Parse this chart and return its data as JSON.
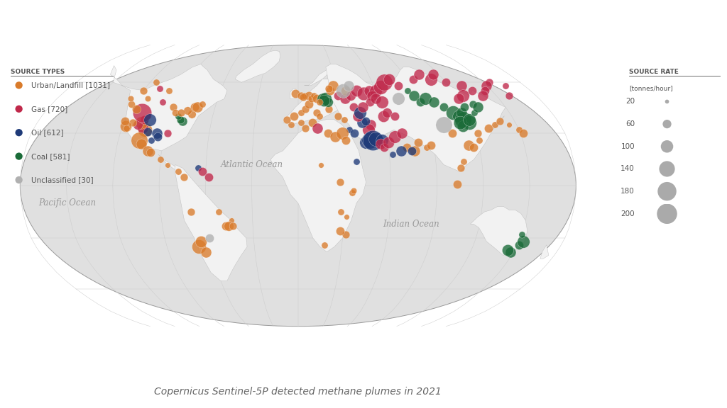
{
  "title": "Copernicus Sentinel-5P detected methane plumes in 2021",
  "title_fontsize": 10,
  "background_color": "#ffffff",
  "ocean_color": "#e0e0e0",
  "land_color": "#f2f2f2",
  "border_color": "#bbbbbb",
  "graticule_color": "#cccccc",
  "source_types_label": "SOURCE TYPES",
  "source_rate_label": "SOURCE RATE",
  "source_rate_unit": "[tonnes/hour]",
  "ocean_labels": [
    {
      "text": "Atlantic Ocean",
      "lon": -30,
      "lat": 12
    },
    {
      "text": "Pacific Ocean",
      "lon": -150,
      "lat": -10
    },
    {
      "text": "Indian Ocean",
      "lon": 75,
      "lat": -22
    }
  ],
  "legend_types": [
    {
      "label": "Urban/Landfill [1031]",
      "color": "#d97b2b"
    },
    {
      "label": "Gas [720]",
      "color": "#c0284a"
    },
    {
      "label": "Oil [612]",
      "color": "#1e3a78"
    },
    {
      "label": "Coal [581]",
      "color": "#1a6b38"
    },
    {
      "label": "Unclassified [30]",
      "color": "#b0b0b0"
    }
  ],
  "size_legend_values": [
    20,
    60,
    100,
    140,
    180,
    200
  ],
  "type_colors": {
    "Urban": "#d97b2b",
    "Gas": "#c0284a",
    "Oil": "#1e3a78",
    "Coal": "#1a6b38",
    "Unclassified": "#b0b0b0"
  },
  "points": [
    {
      "lon": -104,
      "lat": 32,
      "rate": 120,
      "type": "Urban"
    },
    {
      "lon": -106,
      "lat": 33,
      "rate": 80,
      "type": "Gas"
    },
    {
      "lon": -102,
      "lat": 31,
      "rate": 60,
      "type": "Oil"
    },
    {
      "lon": -108,
      "lat": 36,
      "rate": 100,
      "type": "Urban"
    },
    {
      "lon": -110,
      "lat": 35,
      "rate": 70,
      "type": "Gas"
    },
    {
      "lon": -114,
      "lat": 36,
      "rate": 50,
      "type": "Urban"
    },
    {
      "lon": -118,
      "lat": 34,
      "rate": 90,
      "type": "Urban"
    },
    {
      "lon": -120,
      "lat": 37,
      "rate": 60,
      "type": "Urban"
    },
    {
      "lon": -117,
      "lat": 33,
      "rate": 40,
      "type": "Urban"
    },
    {
      "lon": -98,
      "lat": 26,
      "rate": 40,
      "type": "Oil"
    },
    {
      "lon": -95,
      "lat": 30,
      "rate": 80,
      "type": "Oil"
    },
    {
      "lon": -94,
      "lat": 28,
      "rate": 60,
      "type": "Oil"
    },
    {
      "lon": -88,
      "lat": 30,
      "rate": 50,
      "type": "Gas"
    },
    {
      "lon": -105,
      "lat": 40,
      "rate": 30,
      "type": "Gas"
    },
    {
      "lon": -107,
      "lat": 38,
      "rate": 60,
      "type": "Gas"
    },
    {
      "lon": -100,
      "lat": 48,
      "rate": 40,
      "type": "Gas"
    },
    {
      "lon": -112,
      "lat": 50,
      "rate": 35,
      "type": "Urban"
    },
    {
      "lon": -122,
      "lat": 47,
      "rate": 45,
      "type": "Urban"
    },
    {
      "lon": -75,
      "lat": 41,
      "rate": 55,
      "type": "Urban"
    },
    {
      "lon": -80,
      "lat": 37,
      "rate": 65,
      "type": "Coal"
    },
    {
      "lon": -82,
      "lat": 38,
      "rate": 50,
      "type": "Coal"
    },
    {
      "lon": -84,
      "lat": 40,
      "rate": 40,
      "type": "Coal"
    },
    {
      "lon": -111,
      "lat": 42,
      "rate": 180,
      "type": "Gas"
    },
    {
      "lon": -103,
      "lat": 38,
      "rate": 100,
      "type": "Oil"
    },
    {
      "lon": -116,
      "lat": 44,
      "rate": 60,
      "type": "Urban"
    },
    {
      "lon": -106,
      "lat": 26,
      "rate": 150,
      "type": "Urban"
    },
    {
      "lon": -104,
      "lat": 24,
      "rate": 80,
      "type": "Urban"
    },
    {
      "lon": -99,
      "lat": 20,
      "rate": 80,
      "type": "Urban"
    },
    {
      "lon": -97,
      "lat": 19,
      "rate": 60,
      "type": "Urban"
    },
    {
      "lon": -90,
      "lat": 15,
      "rate": 40,
      "type": "Urban"
    },
    {
      "lon": -85,
      "lat": 12,
      "rate": 30,
      "type": "Urban"
    },
    {
      "lon": -78,
      "lat": 8,
      "rate": 40,
      "type": "Urban"
    },
    {
      "lon": -74,
      "lat": 5,
      "rate": 50,
      "type": "Urban"
    },
    {
      "lon": -65,
      "lat": 10,
      "rate": 40,
      "type": "Oil"
    },
    {
      "lon": -62,
      "lat": 8,
      "rate": 60,
      "type": "Gas"
    },
    {
      "lon": -58,
      "lat": 5,
      "rate": 60,
      "type": "Gas"
    },
    {
      "lon": -70,
      "lat": -15,
      "rate": 50,
      "type": "Urban"
    },
    {
      "lon": -68,
      "lat": -35,
      "rate": 120,
      "type": "Urban"
    },
    {
      "lon": -64,
      "lat": -38,
      "rate": 80,
      "type": "Urban"
    },
    {
      "lon": -66,
      "lat": -32,
      "rate": 90,
      "type": "Urban"
    },
    {
      "lon": -52,
      "lat": -15,
      "rate": 40,
      "type": "Urban"
    },
    {
      "lon": -48,
      "lat": -23,
      "rate": 60,
      "type": "Urban"
    },
    {
      "lon": -44,
      "lat": -20,
      "rate": 30,
      "type": "Urban"
    },
    {
      "lon": -46,
      "lat": -23,
      "rate": 70,
      "type": "Urban"
    },
    {
      "lon": -43,
      "lat": -23,
      "rate": 50,
      "type": "Urban"
    },
    {
      "lon": -100,
      "lat": 55,
      "rate": 40,
      "type": "Urban"
    },
    {
      "lon": -90,
      "lat": 45,
      "rate": 50,
      "type": "Urban"
    },
    {
      "lon": -75,
      "lat": 45,
      "rate": 60,
      "type": "Urban"
    },
    {
      "lon": -73,
      "lat": 45,
      "rate": 80,
      "type": "Urban"
    },
    {
      "lon": -70,
      "lat": 47,
      "rate": 40,
      "type": "Urban"
    },
    {
      "lon": -115,
      "lat": 60,
      "rate": 40,
      "type": "Urban"
    },
    {
      "lon": -120,
      "lat": 55,
      "rate": 50,
      "type": "Urban"
    },
    {
      "lon": -108,
      "lat": 56,
      "rate": 40,
      "type": "Gas"
    },
    {
      "lon": -125,
      "lat": 50,
      "rate": 35,
      "type": "Urban"
    },
    {
      "lon": -79,
      "lat": 43,
      "rate": 55,
      "type": "Urban"
    },
    {
      "lon": -87,
      "lat": 42,
      "rate": 45,
      "type": "Urban"
    },
    {
      "lon": -83,
      "lat": 42,
      "rate": 50,
      "type": "Urban"
    },
    {
      "lon": -2,
      "lat": 53,
      "rate": 60,
      "type": "Urban"
    },
    {
      "lon": 2,
      "lat": 52,
      "rate": 50,
      "type": "Urban"
    },
    {
      "lon": 5,
      "lat": 52,
      "rate": 40,
      "type": "Urban"
    },
    {
      "lon": 8,
      "lat": 52,
      "rate": 60,
      "type": "Urban"
    },
    {
      "lon": 4,
      "lat": 51,
      "rate": 50,
      "type": "Urban"
    },
    {
      "lon": -5,
      "lat": 35,
      "rate": 40,
      "type": "Urban"
    },
    {
      "lon": -8,
      "lat": 38,
      "rate": 50,
      "type": "Urban"
    },
    {
      "lon": -3,
      "lat": 40,
      "rate": 60,
      "type": "Urban"
    },
    {
      "lon": 2,
      "lat": 42,
      "rate": 40,
      "type": "Urban"
    },
    {
      "lon": 5,
      "lat": 44,
      "rate": 50,
      "type": "Urban"
    },
    {
      "lon": 8,
      "lat": 47,
      "rate": 60,
      "type": "Urban"
    },
    {
      "lon": 13,
      "lat": 42,
      "rate": 50,
      "type": "Urban"
    },
    {
      "lon": 15,
      "lat": 40,
      "rate": 40,
      "type": "Urban"
    },
    {
      "lon": 22,
      "lat": 44,
      "rate": 50,
      "type": "Urban"
    },
    {
      "lon": 10,
      "lat": 50,
      "rate": 50,
      "type": "Urban"
    },
    {
      "lon": 12,
      "lat": 52,
      "rate": 40,
      "type": "Urban"
    },
    {
      "lon": 14,
      "lat": 50,
      "rate": 60,
      "type": "Urban"
    },
    {
      "lon": 18,
      "lat": 50,
      "rate": 80,
      "type": "Coal"
    },
    {
      "lon": 20,
      "lat": 50,
      "rate": 100,
      "type": "Coal"
    },
    {
      "lon": 22,
      "lat": 48,
      "rate": 70,
      "type": "Coal"
    },
    {
      "lon": 19,
      "lat": 49,
      "rate": 90,
      "type": "Coal"
    },
    {
      "lon": 16,
      "lat": 48,
      "rate": 40,
      "type": "Urban"
    },
    {
      "lon": 25,
      "lat": 55,
      "rate": 60,
      "type": "Urban"
    },
    {
      "lon": 28,
      "lat": 58,
      "rate": 80,
      "type": "Urban"
    },
    {
      "lon": 24,
      "lat": 56,
      "rate": 50,
      "type": "Urban"
    },
    {
      "lon": 30,
      "lat": 52,
      "rate": 60,
      "type": "Gas"
    },
    {
      "lon": 35,
      "lat": 50,
      "rate": 80,
      "type": "Gas"
    },
    {
      "lon": 37,
      "lat": 55,
      "rate": 70,
      "type": "Urban"
    },
    {
      "lon": 40,
      "lat": 52,
      "rate": 70,
      "type": "Gas"
    },
    {
      "lon": 45,
      "lat": 55,
      "rate": 90,
      "type": "Gas"
    },
    {
      "lon": 50,
      "lat": 53,
      "rate": 110,
      "type": "Gas"
    },
    {
      "lon": 55,
      "lat": 55,
      "rate": 80,
      "type": "Gas"
    },
    {
      "lon": 60,
      "lat": 55,
      "rate": 100,
      "type": "Gas"
    },
    {
      "lon": 65,
      "lat": 57,
      "rate": 120,
      "type": "Gas"
    },
    {
      "lon": 70,
      "lat": 60,
      "rate": 150,
      "type": "Gas"
    },
    {
      "lon": 75,
      "lat": 62,
      "rate": 90,
      "type": "Gas"
    },
    {
      "lon": 80,
      "lat": 58,
      "rate": 60,
      "type": "Gas"
    },
    {
      "lon": 56,
      "lat": 52,
      "rate": 80,
      "type": "Gas"
    },
    {
      "lon": 53,
      "lat": 48,
      "rate": 60,
      "type": "Gas"
    },
    {
      "lon": 58,
      "lat": 50,
      "rate": 80,
      "type": "Gas"
    },
    {
      "lon": 62,
      "lat": 48,
      "rate": 100,
      "type": "Gas"
    },
    {
      "lon": 60,
      "lat": 40,
      "rate": 90,
      "type": "Gas"
    },
    {
      "lon": 63,
      "lat": 42,
      "rate": 70,
      "type": "Gas"
    },
    {
      "lon": 68,
      "lat": 40,
      "rate": 60,
      "type": "Gas"
    },
    {
      "lon": 50,
      "lat": 35,
      "rate": 80,
      "type": "Gas"
    },
    {
      "lon": 48,
      "lat": 32,
      "rate": 100,
      "type": "Gas"
    },
    {
      "lon": 44,
      "lat": 36,
      "rate": 80,
      "type": "Oil"
    },
    {
      "lon": 47,
      "lat": 37,
      "rate": 60,
      "type": "Oil"
    },
    {
      "lon": 40,
      "lat": 45,
      "rate": 60,
      "type": "Gas"
    },
    {
      "lon": 42,
      "lat": 40,
      "rate": 80,
      "type": "Gas"
    },
    {
      "lon": 44,
      "lat": 42,
      "rate": 100,
      "type": "Oil"
    },
    {
      "lon": 47,
      "lat": 45,
      "rate": 80,
      "type": "Gas"
    },
    {
      "lon": 45,
      "lat": 25,
      "rate": 100,
      "type": "Oil"
    },
    {
      "lon": 48,
      "lat": 26,
      "rate": 150,
      "type": "Oil"
    },
    {
      "lon": 50,
      "lat": 26,
      "rate": 200,
      "type": "Oil"
    },
    {
      "lon": 52,
      "lat": 27,
      "rate": 120,
      "type": "Oil"
    },
    {
      "lon": 56,
      "lat": 26,
      "rate": 100,
      "type": "Oil"
    },
    {
      "lon": 55,
      "lat": 24,
      "rate": 80,
      "type": "Gas"
    },
    {
      "lon": 57,
      "lat": 22,
      "rate": 60,
      "type": "Gas"
    },
    {
      "lon": 60,
      "lat": 25,
      "rate": 90,
      "type": "Gas"
    },
    {
      "lon": 65,
      "lat": 28,
      "rate": 100,
      "type": "Gas"
    },
    {
      "lon": 70,
      "lat": 30,
      "rate": 80,
      "type": "Gas"
    },
    {
      "lon": 72,
      "lat": 22,
      "rate": 60,
      "type": "Urban"
    },
    {
      "lon": 77,
      "lat": 20,
      "rate": 80,
      "type": "Urban"
    },
    {
      "lon": 80,
      "lat": 25,
      "rate": 60,
      "type": "Urban"
    },
    {
      "lon": 85,
      "lat": 22,
      "rate": 40,
      "type": "Urban"
    },
    {
      "lon": 88,
      "lat": 23,
      "rate": 60,
      "type": "Urban"
    },
    {
      "lon": 75,
      "lat": 20,
      "rate": 60,
      "type": "Oil"
    },
    {
      "lon": 68,
      "lat": 20,
      "rate": 80,
      "type": "Oil"
    },
    {
      "lon": 62,
      "lat": 18,
      "rate": 40,
      "type": "Oil"
    },
    {
      "lon": 35,
      "lat": 32,
      "rate": 40,
      "type": "Oil"
    },
    {
      "lon": 38,
      "lat": 30,
      "rate": 60,
      "type": "Oil"
    },
    {
      "lon": 38,
      "lat": 14,
      "rate": 40,
      "type": "Oil"
    },
    {
      "lon": 28,
      "lat": 40,
      "rate": 50,
      "type": "Urban"
    },
    {
      "lon": 32,
      "lat": 38,
      "rate": 40,
      "type": "Urban"
    },
    {
      "lon": 2,
      "lat": 36,
      "rate": 40,
      "type": "Urban"
    },
    {
      "lon": 5,
      "lat": 33,
      "rate": 50,
      "type": "Urban"
    },
    {
      "lon": 10,
      "lat": 36,
      "rate": 60,
      "type": "Urban"
    },
    {
      "lon": 13,
      "lat": 33,
      "rate": 80,
      "type": "Gas"
    },
    {
      "lon": 20,
      "lat": 30,
      "rate": 60,
      "type": "Urban"
    },
    {
      "lon": 25,
      "lat": 28,
      "rate": 80,
      "type": "Urban"
    },
    {
      "lon": 30,
      "lat": 30,
      "rate": 100,
      "type": "Urban"
    },
    {
      "lon": 32,
      "lat": 26,
      "rate": 60,
      "type": "Urban"
    },
    {
      "lon": 15,
      "lat": 12,
      "rate": 30,
      "type": "Urban"
    },
    {
      "lon": 27,
      "lat": 2,
      "rate": 50,
      "type": "Urban"
    },
    {
      "lon": 28,
      "lat": -15,
      "rate": 40,
      "type": "Urban"
    },
    {
      "lon": 32,
      "lat": -28,
      "rate": 50,
      "type": "Urban"
    },
    {
      "lon": 28,
      "lat": -26,
      "rate": 60,
      "type": "Urban"
    },
    {
      "lon": 18,
      "lat": -34,
      "rate": 40,
      "type": "Urban"
    },
    {
      "lon": 32,
      "lat": -18,
      "rate": 30,
      "type": "Urban"
    },
    {
      "lon": 35,
      "lat": -4,
      "rate": 40,
      "type": "Urban"
    },
    {
      "lon": 36,
      "lat": -3,
      "rate": 35,
      "type": "Urban"
    },
    {
      "lon": 85,
      "lat": 55,
      "rate": 40,
      "type": "Coal"
    },
    {
      "lon": 88,
      "lat": 52,
      "rate": 80,
      "type": "Coal"
    },
    {
      "lon": 90,
      "lat": 48,
      "rate": 60,
      "type": "Coal"
    },
    {
      "lon": 95,
      "lat": 50,
      "rate": 100,
      "type": "Coal"
    },
    {
      "lon": 100,
      "lat": 48,
      "rate": 80,
      "type": "Coal"
    },
    {
      "lon": 105,
      "lat": 45,
      "rate": 60,
      "type": "Coal"
    },
    {
      "lon": 110,
      "lat": 42,
      "rate": 120,
      "type": "Coal"
    },
    {
      "lon": 113,
      "lat": 40,
      "rate": 100,
      "type": "Coal"
    },
    {
      "lon": 115,
      "lat": 38,
      "rate": 150,
      "type": "Coal"
    },
    {
      "lon": 118,
      "lat": 36,
      "rate": 120,
      "type": "Coal"
    },
    {
      "lon": 116,
      "lat": 42,
      "rate": 80,
      "type": "Coal"
    },
    {
      "lon": 120,
      "lat": 45,
      "rate": 60,
      "type": "Coal"
    },
    {
      "lon": 113,
      "lat": 34,
      "rate": 90,
      "type": "Coal"
    },
    {
      "lon": 112,
      "lat": 36,
      "rate": 110,
      "type": "Coal"
    },
    {
      "lon": 119,
      "lat": 38,
      "rate": 100,
      "type": "Coal"
    },
    {
      "lon": 125,
      "lat": 42,
      "rate": 40,
      "type": "Coal"
    },
    {
      "lon": 128,
      "lat": 47,
      "rate": 50,
      "type": "Coal"
    },
    {
      "lon": 130,
      "lat": 45,
      "rate": 80,
      "type": "Coal"
    },
    {
      "lon": 95,
      "lat": 62,
      "rate": 60,
      "type": "Gas"
    },
    {
      "lon": 103,
      "lat": 65,
      "rate": 80,
      "type": "Gas"
    },
    {
      "lon": 110,
      "lat": 62,
      "rate": 100,
      "type": "Gas"
    },
    {
      "lon": 115,
      "lat": 65,
      "rate": 80,
      "type": "Gas"
    },
    {
      "lon": 120,
      "lat": 60,
      "rate": 60,
      "type": "Gas"
    },
    {
      "lon": 103,
      "lat": 1,
      "rate": 60,
      "type": "Urban"
    },
    {
      "lon": 108,
      "lat": 14,
      "rate": 40,
      "type": "Urban"
    },
    {
      "lon": 106,
      "lat": 10,
      "rate": 50,
      "type": "Urban"
    },
    {
      "lon": 113,
      "lat": 23,
      "rate": 80,
      "type": "Urban"
    },
    {
      "lon": 116,
      "lat": 22,
      "rate": 60,
      "type": "Urban"
    },
    {
      "lon": 121,
      "lat": 26,
      "rate": 40,
      "type": "Urban"
    },
    {
      "lon": 104,
      "lat": 30,
      "rate": 60,
      "type": "Urban"
    },
    {
      "lon": 121,
      "lat": 30,
      "rate": 50,
      "type": "Urban"
    },
    {
      "lon": 130,
      "lat": 33,
      "rate": 60,
      "type": "Urban"
    },
    {
      "lon": 135,
      "lat": 35,
      "rate": 40,
      "type": "Urban"
    },
    {
      "lon": 140,
      "lat": 37,
      "rate": 50,
      "type": "Urban"
    },
    {
      "lon": 145,
      "lat": 35,
      "rate": 30,
      "type": "Urban"
    },
    {
      "lon": 150,
      "lat": 32,
      "rate": 40,
      "type": "Urban"
    },
    {
      "lon": 152,
      "lat": 30,
      "rate": 60,
      "type": "Urban"
    },
    {
      "lon": 148,
      "lat": -38,
      "rate": 80,
      "type": "Coal"
    },
    {
      "lon": 151,
      "lat": -34,
      "rate": 60,
      "type": "Coal"
    },
    {
      "lon": 153,
      "lat": -32,
      "rate": 100,
      "type": "Coal"
    },
    {
      "lon": 145,
      "lat": -37,
      "rate": 90,
      "type": "Coal"
    },
    {
      "lon": 150,
      "lat": -28,
      "rate": 40,
      "type": "Coal"
    },
    {
      "lon": 160,
      "lat": 52,
      "rate": 50,
      "type": "Gas"
    },
    {
      "lon": 165,
      "lat": 58,
      "rate": 40,
      "type": "Gas"
    },
    {
      "lon": 155,
      "lat": 60,
      "rate": 50,
      "type": "Gas"
    },
    {
      "lon": 150,
      "lat": 58,
      "rate": 80,
      "type": "Gas"
    },
    {
      "lon": 145,
      "lat": 55,
      "rate": 60,
      "type": "Gas"
    },
    {
      "lon": 140,
      "lat": 52,
      "rate": 80,
      "type": "Gas"
    },
    {
      "lon": 135,
      "lat": 55,
      "rate": 60,
      "type": "Gas"
    },
    {
      "lon": 130,
      "lat": 58,
      "rate": 80,
      "type": "Gas"
    },
    {
      "lon": 125,
      "lat": 52,
      "rate": 100,
      "type": "Gas"
    },
    {
      "lon": 120,
      "lat": 50,
      "rate": 80,
      "type": "Gas"
    },
    {
      "lon": 35,
      "lat": 55,
      "rate": 120,
      "type": "Unclassified"
    },
    {
      "lon": 40,
      "lat": 58,
      "rate": 80,
      "type": "Unclassified"
    },
    {
      "lon": 100,
      "lat": 35,
      "rate": 150,
      "type": "Unclassified"
    },
    {
      "lon": 75,
      "lat": 50,
      "rate": 100,
      "type": "Unclassified"
    },
    {
      "lon": -60,
      "lat": -30,
      "rate": 60,
      "type": "Unclassified"
    }
  ]
}
